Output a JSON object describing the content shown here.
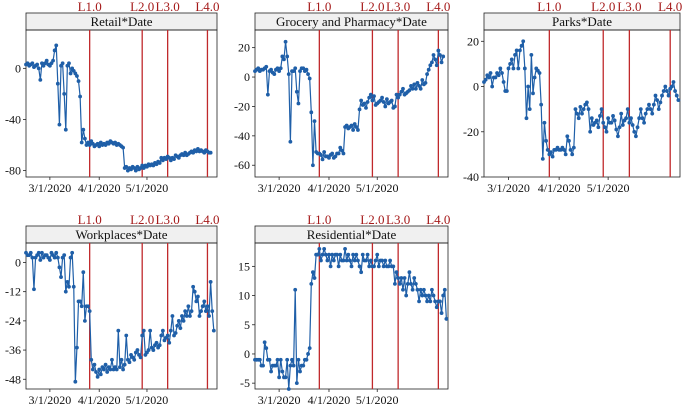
{
  "figure": {
    "lockdown_labels": [
      "L1.0",
      "L2.0",
      "L3.0",
      "L4.0"
    ],
    "lockdown_dates": [
      "2020-03-26",
      "2020-04-28",
      "2020-05-14",
      "2020-06-08"
    ],
    "x_tick_labels": [
      "3/1/2020",
      "4/1/2020",
      "5/1/2020"
    ],
    "x_tick_dates": [
      "2020-03-01",
      "2020-04-01",
      "2020-05-01"
    ],
    "line_color": "#1f5fa8",
    "marker_color": "#1f5fa8",
    "lockdown_line_color": "#c0292b",
    "title_bar_color": "#f0f0f0"
  },
  "chart_data": [
    {
      "type": "line",
      "title": "Retail*Date",
      "x_start": "2020-02-15",
      "x_end": "2020-06-14",
      "ylim": [
        -85,
        30
      ],
      "yticks": [
        0,
        -40,
        -80
      ],
      "values": [
        3,
        4,
        2,
        3,
        4,
        1,
        2,
        3,
        0,
        -9,
        4,
        2,
        4,
        6,
        3,
        2,
        4,
        6,
        14,
        18,
        -12,
        -44,
        2,
        4,
        -20,
        -48,
        2,
        4,
        -4,
        0,
        -2,
        -4,
        -6,
        -10,
        -22,
        -58,
        -48,
        -55,
        -60,
        -58,
        -60,
        -57,
        -59,
        -61,
        -60,
        -59,
        -61,
        -58,
        -60,
        -59,
        -60,
        -58,
        -59,
        -57,
        -58,
        -59,
        -58,
        -60,
        -59,
        -60,
        -61,
        -62,
        -78,
        -77,
        -80,
        -78,
        -79,
        -77,
        -78,
        -80,
        -77,
        -79,
        -78,
        -76,
        -78,
        -76,
        -77,
        -75,
        -76,
        -75,
        -76,
        -74,
        -75,
        -73,
        -74,
        -70,
        -72,
        -70,
        -71,
        -69,
        -70,
        -72,
        -70,
        -71,
        -68,
        -69,
        -70,
        -68,
        -67,
        -68,
        -66,
        -68,
        -67,
        -66,
        -65,
        -66,
        -64,
        -65,
        -63,
        -65,
        -64,
        -65,
        -66,
        -64,
        -65,
        -66,
        -66
      ]
    },
    {
      "type": "line",
      "title": "Grocery and Pharmacy*Date",
      "x_start": "2020-02-15",
      "x_end": "2020-06-14",
      "ylim": [
        -68,
        32
      ],
      "yticks": [
        20,
        0,
        -20,
        -40,
        -60
      ],
      "values": [
        4,
        5,
        6,
        4,
        5,
        5,
        6,
        7,
        -12,
        4,
        5,
        3,
        2,
        5,
        6,
        4,
        6,
        14,
        12,
        24,
        14,
        2,
        -44,
        4,
        4,
        6,
        -10,
        -18,
        4,
        6,
        6,
        4,
        5,
        2,
        -1,
        -24,
        -60,
        -30,
        -51,
        -52,
        -52,
        -53,
        -56,
        -51,
        -54,
        -54,
        -55,
        -53,
        -52,
        -55,
        -54,
        -52,
        -52,
        -48,
        -50,
        -52,
        -34,
        -33,
        -35,
        -34,
        -33,
        -36,
        -32,
        -34,
        -36,
        -22,
        -16,
        -19,
        -18,
        -21,
        -17,
        -14,
        -12,
        -16,
        -13,
        -19,
        -18,
        -17,
        -16,
        -14,
        -17,
        -20,
        -15,
        -18,
        -17,
        -16,
        -21,
        -20,
        -12,
        -14,
        -12,
        -10,
        -8,
        -12,
        -11,
        -10,
        -9,
        -6,
        -8,
        -5,
        -8,
        -4,
        -6,
        -8,
        -2,
        -5,
        -4,
        2,
        5,
        8,
        10,
        15,
        12,
        8,
        18,
        15,
        10,
        14
      ]
    },
    {
      "type": "line",
      "title": "Parks*Date",
      "x_start": "2020-02-15",
      "x_end": "2020-06-14",
      "ylim": [
        -40,
        25
      ],
      "yticks": [
        20,
        0,
        -20,
        -40
      ],
      "values": [
        2,
        3,
        5,
        4,
        6,
        0,
        4,
        4,
        6,
        5,
        8,
        6,
        2,
        -2,
        -2,
        8,
        10,
        12,
        8,
        14,
        16,
        8,
        16,
        18,
        20,
        8,
        -14,
        0,
        -10,
        14,
        -3,
        4,
        8,
        7,
        6,
        -8,
        -32,
        -16,
        -24,
        -28,
        -30,
        -29,
        -31,
        -28,
        -28,
        -27,
        -28,
        -28,
        -27,
        -28,
        -30,
        -22,
        -24,
        -28,
        -30,
        -27,
        -10,
        -12,
        -14,
        -9,
        -12,
        -10,
        -8,
        -7,
        -10,
        -20,
        -14,
        -17,
        -16,
        -15,
        -18,
        -13,
        -10,
        -16,
        -18,
        -20,
        -14,
        -16,
        -16,
        -13,
        -15,
        -19,
        -22,
        -18,
        -12,
        -17,
        -15,
        -14,
        -10,
        -16,
        -14,
        -17,
        -20,
        -22,
        -18,
        -14,
        -10,
        -14,
        -16,
        -12,
        -10,
        -8,
        -10,
        -12,
        -8,
        -4,
        -6,
        -10,
        -7,
        -4,
        -2,
        0,
        -2,
        -4,
        -1,
        0,
        2,
        -2,
        -4,
        -6
      ]
    },
    {
      "type": "line",
      "title": "Workplaces*Date",
      "x_start": "2020-02-15",
      "x_end": "2020-06-14",
      "ylim": [
        -52,
        8
      ],
      "yticks": [
        0,
        -12,
        -24,
        -36,
        -48
      ],
      "values": [
        4,
        3,
        3,
        4,
        2,
        -11,
        2,
        3,
        4,
        1,
        4,
        2,
        3,
        3,
        2,
        1,
        4,
        3,
        2,
        4,
        2,
        -2,
        -6,
        2,
        3,
        -12,
        -8,
        -10,
        2,
        4,
        -10,
        -49,
        -35,
        -16,
        -16,
        -18,
        -4,
        -24,
        -18,
        -18,
        -20,
        -40,
        -44,
        -42,
        -45,
        -47,
        -44,
        -46,
        -43,
        -44,
        -42,
        -45,
        -43,
        -44,
        -40,
        -44,
        -43,
        -44,
        -28,
        -43,
        -40,
        -44,
        -42,
        -30,
        -40,
        -41,
        -38,
        -39,
        -40,
        -37,
        -36,
        -38,
        -39,
        -30,
        -28,
        -38,
        -37,
        -36,
        -28,
        -35,
        -36,
        -34,
        -33,
        -35,
        -34,
        -30,
        -28,
        -32,
        -31,
        -30,
        -33,
        -28,
        -22,
        -30,
        -29,
        -26,
        -24,
        -27,
        -22,
        -24,
        -20,
        -22,
        -18,
        -22,
        -20,
        -10,
        -12,
        -16,
        -14,
        -22,
        -20,
        -18,
        -16,
        -20,
        -18,
        -22,
        -8,
        -20,
        -28
      ]
    },
    {
      "type": "line",
      "title": "Residential*Date",
      "x_start": "2020-02-15",
      "x_end": "2020-06-14",
      "ylim": [
        -6,
        19
      ],
      "yticks": [
        15,
        10,
        5,
        0,
        -5
      ],
      "values": [
        -1,
        -1,
        -1,
        -1,
        -2,
        -2,
        2,
        1,
        -1,
        -1,
        -3,
        -2,
        -2,
        -2,
        -1,
        -4,
        -1,
        -3,
        -4,
        -4,
        -1,
        -6,
        -2,
        -1,
        -2,
        11,
        -5,
        -1,
        -3,
        -2,
        -2,
        -1,
        -1,
        0,
        1,
        12,
        14,
        13,
        17,
        17,
        18,
        16,
        17,
        18,
        17,
        16,
        17,
        15,
        17,
        16,
        17,
        17,
        15,
        17,
        16,
        16,
        18,
        16,
        17,
        16,
        15,
        17,
        16,
        17,
        16,
        15,
        14,
        17,
        16,
        16,
        17,
        15,
        16,
        15,
        15,
        16,
        17,
        15,
        16,
        16,
        15,
        16,
        15,
        15,
        16,
        15,
        15,
        12,
        14,
        13,
        12,
        13,
        11,
        13,
        10,
        12,
        14,
        12,
        11,
        13,
        12,
        11,
        9,
        11,
        10,
        11,
        10,
        9,
        10,
        9,
        11,
        10,
        9,
        8,
        9,
        9,
        7,
        10,
        11,
        6
      ]
    }
  ]
}
